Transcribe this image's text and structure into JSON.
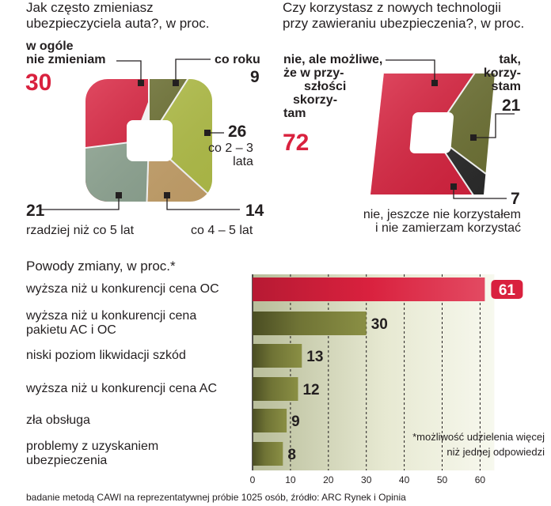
{
  "chart_data": [
    {
      "type": "pie",
      "title": "Jak często zmieniasz ubezpieczyciela auta?, w proc.",
      "slices": [
        {
          "label": "w ogóle nie zmieniam",
          "value": 30,
          "color": "#d9213e"
        },
        {
          "label": "co roku",
          "value": 9,
          "color": "#6f7335"
        },
        {
          "label": "co 2 – 3 lata",
          "value": 26,
          "color": "#b5c24a"
        },
        {
          "label": "co 4 – 5 lat",
          "value": 14,
          "color": "#c9a46c"
        },
        {
          "label": "rzadziej niż co 5 lat",
          "value": 21,
          "color": "#8ea592"
        }
      ]
    },
    {
      "type": "pie",
      "title": "Czy korzystasz z nowych technologii przy zawieraniu ubezpieczenia?, w proc.",
      "slices": [
        {
          "label": "nie, ale możliwe, że w przyszłości skorzystam",
          "value": 72,
          "color": "#d9213e"
        },
        {
          "label": "tak, korzystam",
          "value": 21,
          "color": "#6f7335"
        },
        {
          "label": "nie, jeszcze nie korzystałem i nie zamierzam korzystać",
          "value": 7,
          "color": "#2b2b2b"
        }
      ]
    },
    {
      "type": "bar",
      "orientation": "horizontal",
      "title": "Powody zmiany, w proc.*",
      "categories": [
        "wyższa niż u konkurencji cena OC",
        "wyższa niż u konkurencji cena pakietu AC i OC",
        "niski poziom likwidacji szkód",
        "wyższa niż u konkurencji cena AC",
        "zła obsługa",
        "problemy z uzyskaniem ubezpieczenia"
      ],
      "values": [
        61,
        30,
        13,
        12,
        9,
        8
      ],
      "xlim": [
        0,
        60
      ],
      "xticks": [
        0,
        10,
        20,
        30,
        40,
        50,
        60
      ],
      "grid": "vertical dashed",
      "highlight_color": "#d9213e",
      "bar_color": "#6f7335"
    }
  ],
  "pie1": {
    "title_line1": "Jak często zmieniasz",
    "title_line2": "ubezpieczyciela auta?, w proc.",
    "s1_label_a": "w ogóle",
    "s1_label_b": "nie zmieniam",
    "s1_value": "30",
    "s2_label": "co roku",
    "s2_value": "9",
    "s3_value": "26",
    "s3_label_a": "co 2 – 3",
    "s3_label_b": "lata",
    "s4_value": "14",
    "s4_label": "co 4 – 5 lat",
    "s5_value": "21",
    "s5_label": "rzadziej niż co 5 lat"
  },
  "pie2": {
    "title_line1": "Czy korzystasz z nowych technologii",
    "title_line2": "przy zawieraniu ubezpieczenia?, w proc.",
    "s1_lines": [
      "nie, ale możliwe,",
      "że w przy-",
      "szłości",
      "skorzy-",
      "tam"
    ],
    "s1_value": "72",
    "s2_lines": [
      "tak,",
      "korzy-",
      "stam"
    ],
    "s2_value": "21",
    "s3_value": "7",
    "s3_label_a": "nie, jeszcze nie korzystałem",
    "s3_label_b": "i nie zamierzam korzystać"
  },
  "bars": {
    "title": "Powody zmiany, w proc.*",
    "footnote_a": "*możliwość udzielenia więcej",
    "footnote_b": "niż jednej odpowiedzi"
  },
  "footer": "badanie metodą CAWI na reprezentatywnej próbie 1025 osób, źródło: ARC Rynek i Opinia"
}
